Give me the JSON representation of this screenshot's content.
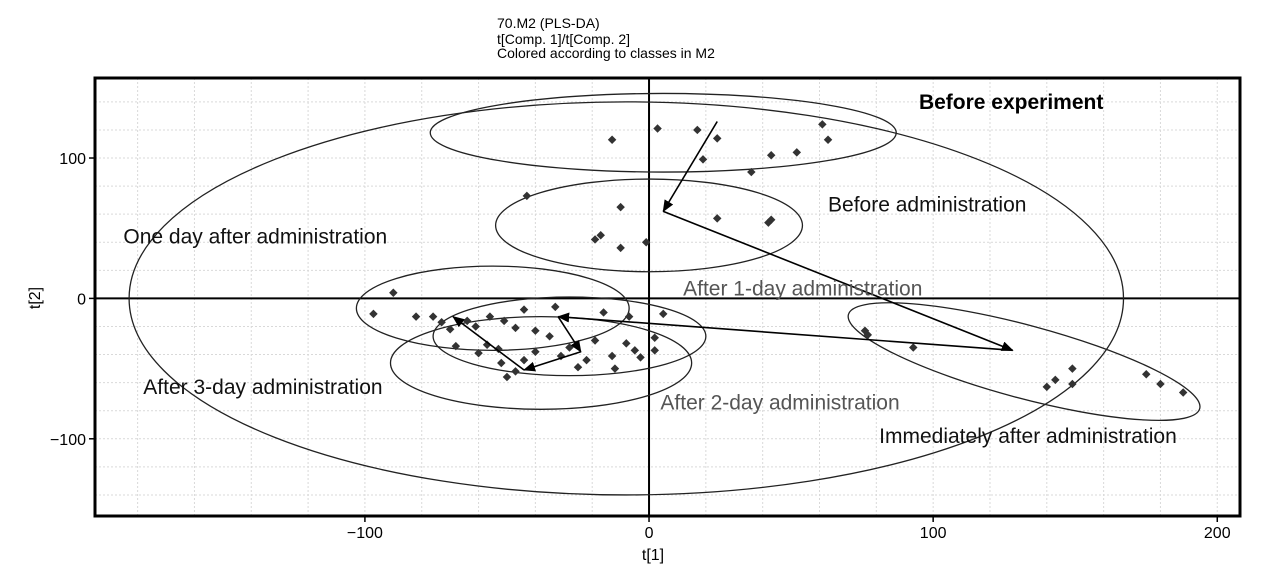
{
  "colors": {
    "points": "#333333",
    "axes": "#000000",
    "ellipses": "#222222",
    "grid": "#d9d9d9"
  },
  "chart_data": {
    "type": "scatter",
    "title_lines": [
      "70.M2 (PLS-DA)",
      "t[Comp. 1]/t[Comp. 2]",
      "Colored according to classes in M2"
    ],
    "xlabel": "t[1]",
    "ylabel": "t[2]",
    "xlim": [
      -195,
      208
    ],
    "ylim": [
      -155,
      157
    ],
    "xticks": [
      -100,
      0,
      100,
      200
    ],
    "yticks": [
      -100,
      0,
      100
    ],
    "grid": true,
    "groups": [
      {
        "label": "Before experiment",
        "label_pos": [
          95,
          135
        ],
        "label_style": "bold",
        "ellipse": {
          "cx": 5,
          "cy": 118,
          "rx": 82,
          "ry": 28
        },
        "points": [
          [
            -13,
            113
          ],
          [
            3,
            121
          ],
          [
            17,
            120
          ],
          [
            19,
            99
          ],
          [
            24,
            114
          ],
          [
            36,
            90
          ],
          [
            43,
            102
          ],
          [
            52,
            104
          ],
          [
            61,
            124
          ],
          [
            63,
            113
          ]
        ]
      },
      {
        "label": "Before administration",
        "label_pos": [
          63,
          62
        ],
        "label_style": "normal",
        "ellipse": {
          "cx": 0,
          "cy": 52,
          "rx": 54,
          "ry": 33
        },
        "points": [
          [
            -43,
            73
          ],
          [
            -19,
            42
          ],
          [
            -17,
            45
          ],
          [
            -10,
            36
          ],
          [
            -10,
            65
          ],
          [
            -1,
            40
          ],
          [
            24,
            57
          ],
          [
            42,
            54
          ],
          [
            43,
            56
          ]
        ]
      },
      {
        "label": "One day after administration",
        "label_pos": [
          -185,
          39
        ],
        "label_style": "normal",
        "ellipse": {
          "cx": -8,
          "cy": 0,
          "rx": 175,
          "ry": 140
        },
        "points": []
      },
      {
        "label": "After 1-day administration",
        "label_pos": [
          12,
          2
        ],
        "label_style": "light",
        "ellipse": {
          "cx": -28,
          "cy": -27,
          "rx": 48,
          "ry": 28
        },
        "points": [
          [
            -90,
            4
          ],
          [
            -33,
            -6
          ],
          [
            -16,
            -10
          ],
          [
            -7,
            -13
          ],
          [
            2,
            -28
          ],
          [
            5,
            -11
          ]
        ]
      },
      {
        "label": "After 3-day administration",
        "label_pos": [
          -178,
          -68
        ],
        "label_style": "normal",
        "ellipse": {
          "cx": -55,
          "cy": -7,
          "rx": 48,
          "ry": 30
        },
        "points": [
          [
            -97,
            -11
          ],
          [
            -82,
            -13
          ],
          [
            -76,
            -13
          ],
          [
            -73,
            -17
          ],
          [
            -70,
            -22
          ],
          [
            -64,
            -16
          ],
          [
            -61,
            -20
          ],
          [
            -56,
            -13
          ],
          [
            -51,
            -16
          ],
          [
            -47,
            -21
          ],
          [
            -44,
            -8
          ],
          [
            -40,
            -23
          ]
        ]
      },
      {
        "label": "After 2-day administration",
        "label_pos": [
          4,
          -79
        ],
        "label_style": "light",
        "ellipse": {
          "cx": -38,
          "cy": -46,
          "rx": 53,
          "ry": 33
        },
        "points": [
          [
            -68,
            -34
          ],
          [
            -60,
            -39
          ],
          [
            -57,
            -33
          ],
          [
            -53,
            -36
          ],
          [
            -52,
            -46
          ],
          [
            -50,
            -56
          ],
          [
            -47,
            -52
          ],
          [
            -44,
            -44
          ],
          [
            -40,
            -38
          ],
          [
            -35,
            -27
          ],
          [
            -31,
            -41
          ],
          [
            -28,
            -35
          ],
          [
            -25,
            -49
          ],
          [
            -22,
            -44
          ],
          [
            -19,
            -30
          ],
          [
            -13,
            -41
          ],
          [
            -12,
            -50
          ],
          [
            -8,
            -32
          ],
          [
            -5,
            -37
          ],
          [
            -3,
            -42
          ],
          [
            2,
            -37
          ]
        ]
      },
      {
        "label": "Immediately after administration",
        "label_pos": [
          81,
          -103
        ],
        "label_style": "normal",
        "ellipse": {
          "cx": 132,
          "cy": -45,
          "rx": 64,
          "ry": 26,
          "rotate": 15
        },
        "points": [
          [
            76,
            -23
          ],
          [
            77,
            -26
          ],
          [
            93,
            -35
          ],
          [
            140,
            -63
          ],
          [
            143,
            -58
          ],
          [
            149,
            -50
          ],
          [
            149,
            -61
          ],
          [
            175,
            -54
          ],
          [
            180,
            -61
          ],
          [
            188,
            -67
          ]
        ]
      }
    ],
    "arrows": [
      [
        [
          24,
          126
        ],
        [
          5,
          62
        ]
      ],
      [
        [
          5,
          62
        ],
        [
          128,
          -37
        ]
      ],
      [
        [
          128,
          -37
        ],
        [
          -32,
          -13
        ]
      ],
      [
        [
          -32,
          -13
        ],
        [
          -24,
          -38
        ]
      ],
      [
        [
          -24,
          -38
        ],
        [
          -44,
          -51
        ]
      ],
      [
        [
          -44,
          -51
        ],
        [
          -69,
          -13
        ]
      ]
    ]
  }
}
